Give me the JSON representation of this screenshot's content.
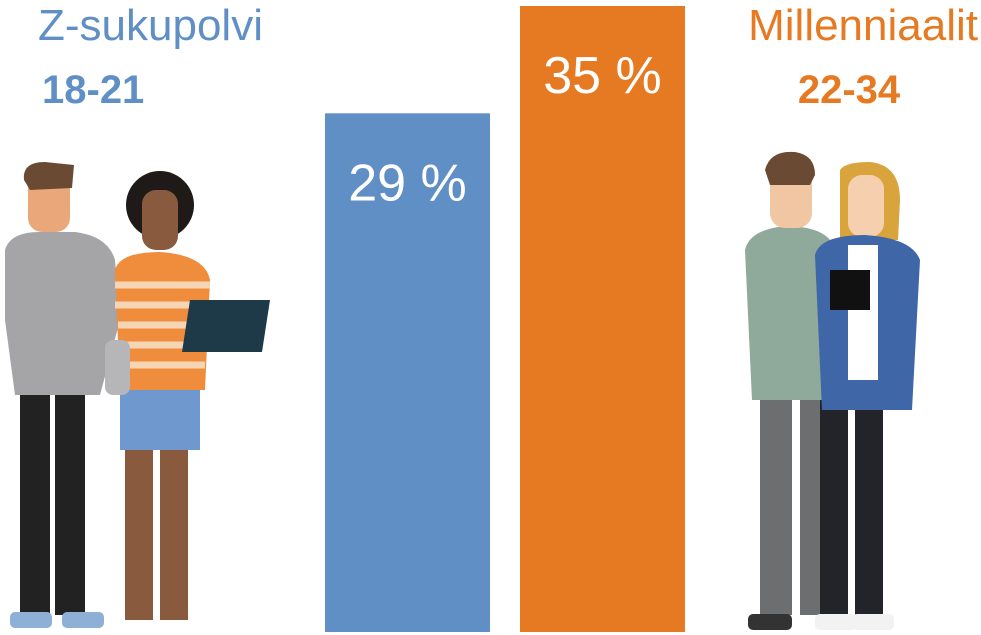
{
  "chart_data": {
    "type": "bar",
    "categories": [
      "Z-sukupolvi",
      "Millenniaalit"
    ],
    "age_ranges": [
      "18-21",
      "22-34"
    ],
    "values": [
      29,
      35
    ],
    "value_labels": [
      "29 %",
      "35 %"
    ],
    "colors": [
      "#5f8fc5",
      "#e67a22"
    ]
  }
}
